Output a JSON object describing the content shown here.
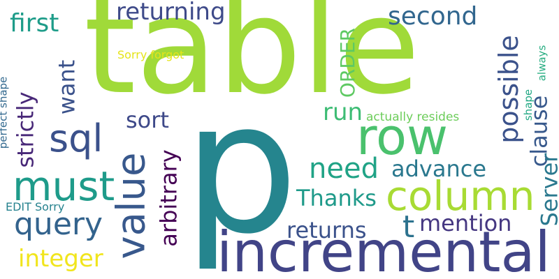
{
  "words": [
    {
      "id": "table",
      "text": "table",
      "color": "#a0da39"
    },
    {
      "id": "p",
      "text": "p",
      "color": "#25858e"
    },
    {
      "id": "incremental",
      "text": "incremental",
      "color": "#414487"
    },
    {
      "id": "row",
      "text": "row",
      "color": "#4ac16d"
    },
    {
      "id": "column",
      "text": "column",
      "color": "#a8db34"
    },
    {
      "id": "value",
      "text": "value",
      "color": "#38588c"
    },
    {
      "id": "must",
      "text": "must",
      "color": "#1e9b8a"
    },
    {
      "id": "sql",
      "text": "sql",
      "color": "#3b518b"
    },
    {
      "id": "query",
      "text": "query",
      "color": "#33638d"
    },
    {
      "id": "need",
      "text": "need",
      "color": "#20a386"
    },
    {
      "id": "advance",
      "text": "advance",
      "color": "#2a788e"
    },
    {
      "id": "returning",
      "text": "returning",
      "color": "#3e4a89"
    },
    {
      "id": "second",
      "text": "second",
      "color": "#31668e"
    },
    {
      "id": "first",
      "text": "first",
      "color": "#1e9c89"
    },
    {
      "id": "run",
      "text": "run",
      "color": "#3dbc74"
    },
    {
      "id": "sort",
      "text": "sort",
      "color": "#3e4989"
    },
    {
      "id": "thanks",
      "text": "Thanks",
      "color": "#1f9a8a"
    },
    {
      "id": "returns",
      "text": "returns",
      "color": "#3b528b"
    },
    {
      "id": "t",
      "text": "t",
      "color": "#2c728e"
    },
    {
      "id": "mention",
      "text": "mention",
      "color": "#453781"
    },
    {
      "id": "integer",
      "text": "integer",
      "color": "#f1e51d"
    },
    {
      "id": "arbitrary",
      "text": "arbitrary",
      "color": "#440154"
    },
    {
      "id": "strictly",
      "text": "strictly",
      "color": "#482878"
    },
    {
      "id": "want",
      "text": "want",
      "color": "#3b528b"
    },
    {
      "id": "possible",
      "text": "possible",
      "color": "#3b528b"
    },
    {
      "id": "clause",
      "text": "clause",
      "color": "#38598c"
    },
    {
      "id": "server",
      "text": "Server",
      "color": "#2a788e"
    },
    {
      "id": "order",
      "text": "ORDER",
      "color": "#5ec962"
    },
    {
      "id": "sorry-forgot",
      "text": "Sorry forgot",
      "color": "#e5e419"
    },
    {
      "id": "actually-resides",
      "text": "actually resides",
      "color": "#6ccd5a"
    },
    {
      "id": "shape",
      "text": "shape",
      "color": "#22a884"
    },
    {
      "id": "always",
      "text": "always",
      "color": "#27ad81"
    },
    {
      "id": "perfect-shape",
      "text": "perfect shape",
      "color": "#31688e"
    },
    {
      "id": "edit-sorry",
      "text": "EDIT Sorry",
      "color": "#26828e"
    }
  ]
}
